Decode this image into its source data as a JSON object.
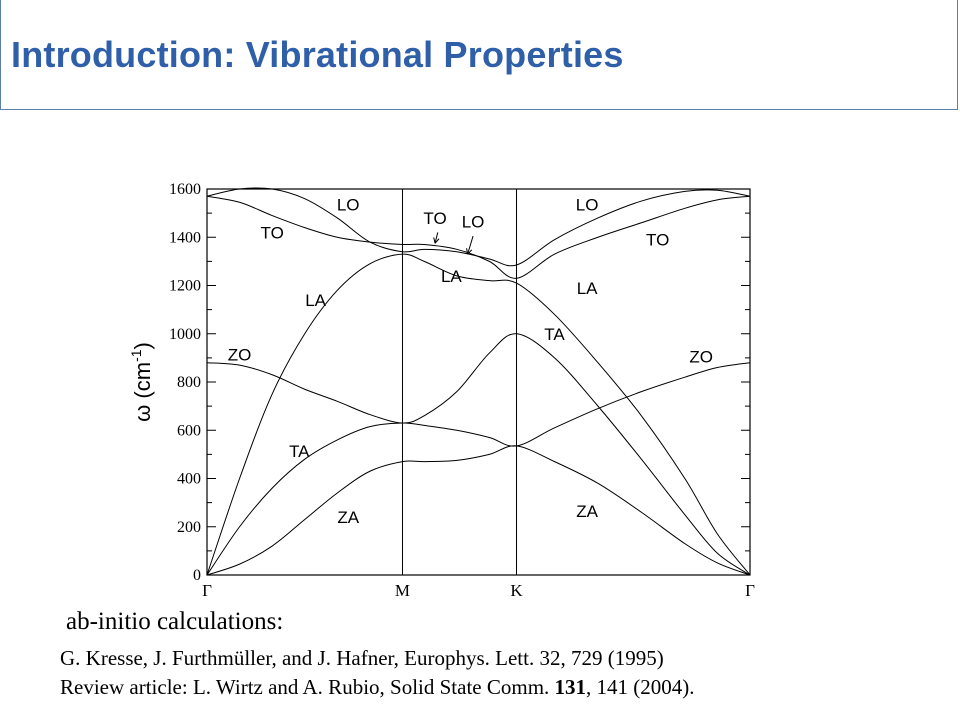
{
  "header": {
    "title": "Introduction: Vibrational Properties"
  },
  "chart_data": {
    "type": "line",
    "title": "",
    "ylabel": "ω (cm",
    "ylabel_sup": "-1",
    "ylabel_close": ")",
    "ylim": [
      0,
      1600
    ],
    "yticks": [
      0,
      200,
      400,
      600,
      800,
      1000,
      1200,
      1400,
      1600
    ],
    "ytick_labels": [
      "0",
      "200",
      "400",
      "600",
      "800",
      "1000",
      "1200",
      "1400",
      "1600"
    ],
    "xlim": [
      0,
      1
    ],
    "high_symmetry_points": [
      {
        "label": "Γ",
        "x": 0
      },
      {
        "label": "M",
        "x": 0.36
      },
      {
        "label": "K",
        "x": 0.57
      },
      {
        "label": "Γ",
        "x": 1.0
      }
    ],
    "grid": false,
    "series": [
      {
        "name": "ZA",
        "x": [
          0,
          0.06,
          0.12,
          0.18,
          0.24,
          0.3,
          0.36,
          0.4,
          0.46,
          0.52,
          0.57,
          0.64,
          0.72,
          0.8,
          0.88,
          0.94,
          1.0
        ],
        "values": [
          0,
          45,
          120,
          230,
          340,
          430,
          470,
          470,
          475,
          500,
          535,
          470,
          380,
          260,
          130,
          50,
          0
        ]
      },
      {
        "name": "TA",
        "x": [
          0,
          0.06,
          0.12,
          0.18,
          0.24,
          0.3,
          0.36,
          0.4,
          0.46,
          0.52,
          0.57,
          0.64,
          0.72,
          0.8,
          0.88,
          0.94,
          1.0
        ],
        "values": [
          0,
          200,
          360,
          480,
          560,
          615,
          630,
          620,
          600,
          570,
          535,
          610,
          690,
          760,
          820,
          860,
          880
        ]
      },
      {
        "name": "ZO",
        "x": [
          0,
          0.06,
          0.12,
          0.18,
          0.24,
          0.3,
          0.36,
          0.4,
          0.46,
          0.52,
          0.57,
          0.64,
          0.72,
          0.8,
          0.88,
          0.94,
          1.0
        ],
        "values": [
          880,
          870,
          830,
          770,
          720,
          665,
          630,
          660,
          760,
          920,
          1000,
          900,
          700,
          480,
          250,
          90,
          0
        ]
      },
      {
        "name": "LA",
        "x": [
          0,
          0.06,
          0.12,
          0.18,
          0.24,
          0.3,
          0.36,
          0.4,
          0.46,
          0.52,
          0.57,
          0.64,
          0.72,
          0.8,
          0.88,
          0.94,
          1.0
        ],
        "values": [
          0,
          400,
          750,
          1000,
          1180,
          1290,
          1330,
          1300,
          1240,
          1220,
          1210,
          1080,
          880,
          660,
          400,
          170,
          0
        ]
      },
      {
        "name": "TO",
        "x": [
          0,
          0.06,
          0.12,
          0.18,
          0.24,
          0.3,
          0.36,
          0.4,
          0.46,
          0.52,
          0.57,
          0.64,
          0.72,
          0.8,
          0.88,
          0.94,
          1.0
        ],
        "values": [
          1570,
          1545,
          1490,
          1440,
          1400,
          1380,
          1370,
          1370,
          1350,
          1300,
          1230,
          1330,
          1400,
          1460,
          1520,
          1555,
          1570
        ]
      },
      {
        "name": "LO",
        "x": [
          0,
          0.06,
          0.12,
          0.18,
          0.24,
          0.3,
          0.36,
          0.4,
          0.46,
          0.52,
          0.57,
          0.64,
          0.72,
          0.8,
          0.88,
          0.94,
          1.0
        ],
        "values": [
          1570,
          1600,
          1600,
          1560,
          1480,
          1380,
          1340,
          1350,
          1340,
          1310,
          1285,
          1390,
          1480,
          1550,
          1590,
          1595,
          1570
        ]
      }
    ],
    "annotations": [
      {
        "text": "LO",
        "x": 0.26,
        "y": 1510
      },
      {
        "text": "TO",
        "x": 0.12,
        "y": 1395
      },
      {
        "text": "LA",
        "x": 0.2,
        "y": 1115
      },
      {
        "text": "ZO",
        "x": 0.06,
        "y": 890
      },
      {
        "text": "TA",
        "x": 0.17,
        "y": 490
      },
      {
        "text": "ZA",
        "x": 0.26,
        "y": 215
      },
      {
        "text": "TO",
        "x": 0.42,
        "y": 1455
      },
      {
        "text": "LO",
        "x": 0.49,
        "y": 1440
      },
      {
        "text": "LA",
        "x": 0.45,
        "y": 1215
      },
      {
        "text": "TA",
        "x": 0.64,
        "y": 975
      },
      {
        "text": "LO",
        "x": 0.7,
        "y": 1510
      },
      {
        "text": "TO",
        "x": 0.83,
        "y": 1365
      },
      {
        "text": "LA",
        "x": 0.7,
        "y": 1165
      },
      {
        "text": "ZO",
        "x": 0.91,
        "y": 880
      },
      {
        "text": "ZA",
        "x": 0.7,
        "y": 240
      }
    ]
  },
  "captions": {
    "line1": "ab-initio calculations:",
    "line2": "G. Kresse, J. Furthmüller, and J. Hafner, Europhys. Lett. 32, 729 (1995)",
    "line3_prefix": "Review article: L. Wirtz and A. Rubio, Solid State Comm. ",
    "line3_bold": "131",
    "line3_suffix": ", 141 (2004)."
  }
}
